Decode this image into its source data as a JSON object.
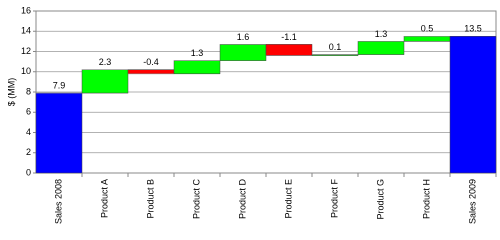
{
  "chart_data": {
    "type": "waterfall",
    "y_label": "$ (MM)",
    "categories": [
      "Sales 2008",
      "Product A",
      "Product B",
      "Product C",
      "Product D",
      "Product E",
      "Product F",
      "Product G",
      "Product H",
      "Sales 2009"
    ],
    "values": [
      7.9,
      2.3,
      -0.4,
      1.3,
      1.6,
      -1.1,
      0.1,
      1.3,
      0.5,
      13.5
    ],
    "measures": [
      "absolute",
      "relative",
      "relative",
      "relative",
      "relative",
      "relative",
      "relative",
      "relative",
      "relative",
      "absolute"
    ],
    "colors": {
      "absolute": "#0000ff",
      "increase": "#00ff00",
      "decrease": "#ff0000"
    },
    "ylim": [
      0,
      16
    ],
    "yticks": [
      0,
      2,
      4,
      6,
      8,
      10,
      12,
      14,
      16
    ],
    "grid": true
  }
}
